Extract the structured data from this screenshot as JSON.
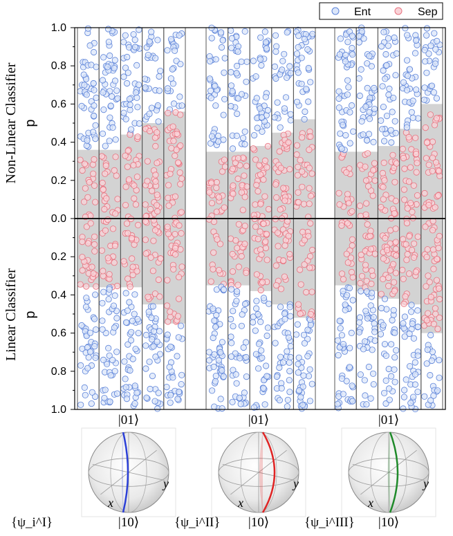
{
  "chart_data": {
    "type": "scatter",
    "legend": [
      {
        "name": "Ent",
        "fill": "#dbe6fa",
        "stroke": "#5b82d8"
      },
      {
        "name": "Sep",
        "fill": "#f9d3d8",
        "stroke": "#e8727f"
      }
    ],
    "legend_position": "top-right",
    "ylabel_top": "Non-Linear Classifier",
    "ylabel_bottom": "Linear Classifier",
    "p_label": "p",
    "yticks": [
      "1.0",
      "0.8",
      "0.6",
      "0.4",
      "0.2",
      "0.0",
      "0.2",
      "0.4",
      "0.6",
      "0.8",
      "1.0"
    ],
    "ylim": [
      0,
      1
    ],
    "panels": [
      {
        "top_label": "|01⟩",
        "bottom_label": "|10⟩",
        "set_label": "{ψ_i^I}",
        "curve_color": "#2b3fd8",
        "strips": 5,
        "nonlinear_boundary": [
          0.36,
          0.36,
          0.44,
          0.5,
          0.56
        ],
        "linear_boundary": [
          0.36,
          0.36,
          0.36,
          0.45,
          0.55
        ]
      },
      {
        "top_label": "|01⟩",
        "bottom_label": "|10⟩",
        "set_label": "{ψ_i^II}",
        "curve_color": "#e02424",
        "strips": 5,
        "nonlinear_boundary": [
          0.35,
          0.35,
          0.38,
          0.45,
          0.52
        ],
        "linear_boundary": [
          0.35,
          0.35,
          0.38,
          0.45,
          0.52
        ]
      },
      {
        "top_label": "|01⟩",
        "bottom_label": "|10⟩",
        "set_label": "{ψ_i^III}",
        "curve_color": "#1f8a2a",
        "strips": 5,
        "nonlinear_boundary": [
          0.35,
          0.35,
          0.38,
          0.47,
          0.6
        ],
        "linear_boundary": [
          0.35,
          0.38,
          0.42,
          0.45,
          0.6
        ]
      }
    ],
    "sphere_axes": {
      "x": "x",
      "y": "y"
    }
  }
}
